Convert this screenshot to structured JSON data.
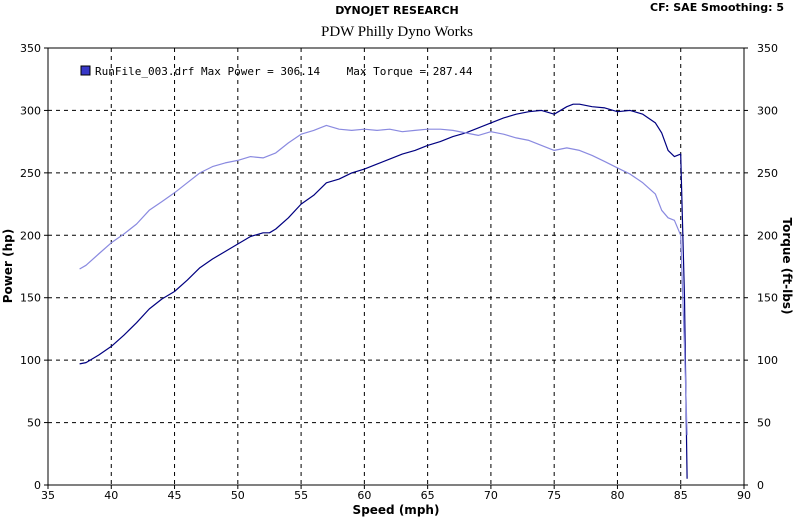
{
  "header": {
    "company": "DYNOJET RESEARCH",
    "settings": "CF: SAE  Smoothing: 5"
  },
  "chart_data": {
    "type": "line",
    "title": "PDW Philly Dyno Works",
    "xlabel": "Speed (mph)",
    "ylabel_left": "Power (hp)",
    "ylabel_right": "Torque (ft-lbs)",
    "xlim": [
      35,
      90
    ],
    "ylim": [
      0,
      350
    ],
    "x_ticks": [
      35,
      40,
      45,
      50,
      55,
      60,
      65,
      70,
      75,
      80,
      85,
      90
    ],
    "y_ticks": [
      0,
      50,
      100,
      150,
      200,
      250,
      300,
      350
    ],
    "grid": true,
    "legend": {
      "placement": "top-left",
      "text": "RunFile_003.drf Max Power = 306.14    Max Torque = 287.44",
      "swatch_color": "#3838c8"
    },
    "series": [
      {
        "role": "power",
        "color": "#000080",
        "points": [
          [
            37.5,
            97
          ],
          [
            38,
            98
          ],
          [
            39,
            104
          ],
          [
            40,
            111
          ],
          [
            41,
            120
          ],
          [
            42,
            130
          ],
          [
            43,
            141
          ],
          [
            44,
            149
          ],
          [
            45,
            155
          ],
          [
            46,
            164
          ],
          [
            47,
            174
          ],
          [
            48,
            181
          ],
          [
            49,
            187
          ],
          [
            50,
            193
          ],
          [
            51,
            199
          ],
          [
            52,
            202
          ],
          [
            52.5,
            202
          ],
          [
            53,
            205
          ],
          [
            54,
            214
          ],
          [
            55,
            225
          ],
          [
            56,
            232
          ],
          [
            57,
            242
          ],
          [
            58,
            245
          ],
          [
            59,
            250
          ],
          [
            60,
            253
          ],
          [
            61,
            257
          ],
          [
            62,
            261
          ],
          [
            63,
            265
          ],
          [
            64,
            268
          ],
          [
            65,
            272
          ],
          [
            66,
            275
          ],
          [
            67,
            279
          ],
          [
            68,
            282
          ],
          [
            69,
            286
          ],
          [
            70,
            290
          ],
          [
            71,
            294
          ],
          [
            72,
            297
          ],
          [
            73,
            299
          ],
          [
            74,
            300
          ],
          [
            75,
            297
          ],
          [
            76,
            303
          ],
          [
            76.5,
            305
          ],
          [
            77,
            305
          ],
          [
            78,
            303
          ],
          [
            79,
            302
          ],
          [
            80,
            299
          ],
          [
            81,
            300
          ],
          [
            82,
            297
          ],
          [
            83,
            290
          ],
          [
            83.5,
            282
          ],
          [
            84,
            268
          ],
          [
            84.5,
            263
          ],
          [
            85,
            265
          ],
          [
            85.3,
            150
          ],
          [
            85.5,
            5
          ]
        ]
      },
      {
        "role": "torque",
        "color": "#8a8ae0",
        "points": [
          [
            37.5,
            173
          ],
          [
            38,
            176
          ],
          [
            39,
            185
          ],
          [
            40,
            194
          ],
          [
            41,
            201
          ],
          [
            42,
            209
          ],
          [
            43,
            220
          ],
          [
            44,
            227
          ],
          [
            45,
            234
          ],
          [
            46,
            242
          ],
          [
            47,
            250
          ],
          [
            48,
            255
          ],
          [
            49,
            258
          ],
          [
            50,
            260
          ],
          [
            51,
            263
          ],
          [
            52,
            262
          ],
          [
            53,
            266
          ],
          [
            54,
            274
          ],
          [
            55,
            281
          ],
          [
            56,
            284
          ],
          [
            57,
            288
          ],
          [
            58,
            285
          ],
          [
            59,
            284
          ],
          [
            60,
            285
          ],
          [
            61,
            284
          ],
          [
            62,
            285
          ],
          [
            63,
            283
          ],
          [
            64,
            284
          ],
          [
            65,
            285
          ],
          [
            66,
            285
          ],
          [
            67,
            284
          ],
          [
            68,
            282
          ],
          [
            69,
            280
          ],
          [
            70,
            283
          ],
          [
            71,
            281
          ],
          [
            72,
            278
          ],
          [
            73,
            276
          ],
          [
            74,
            272
          ],
          [
            75,
            268
          ],
          [
            76,
            270
          ],
          [
            77,
            268
          ],
          [
            78,
            264
          ],
          [
            79,
            259
          ],
          [
            80,
            254
          ],
          [
            81,
            249
          ],
          [
            82,
            242
          ],
          [
            83,
            233
          ],
          [
            83.5,
            220
          ],
          [
            84,
            214
          ],
          [
            84.5,
            212
          ],
          [
            85,
            200
          ],
          [
            85.3,
            110
          ],
          [
            85.5,
            40
          ]
        ]
      }
    ]
  }
}
